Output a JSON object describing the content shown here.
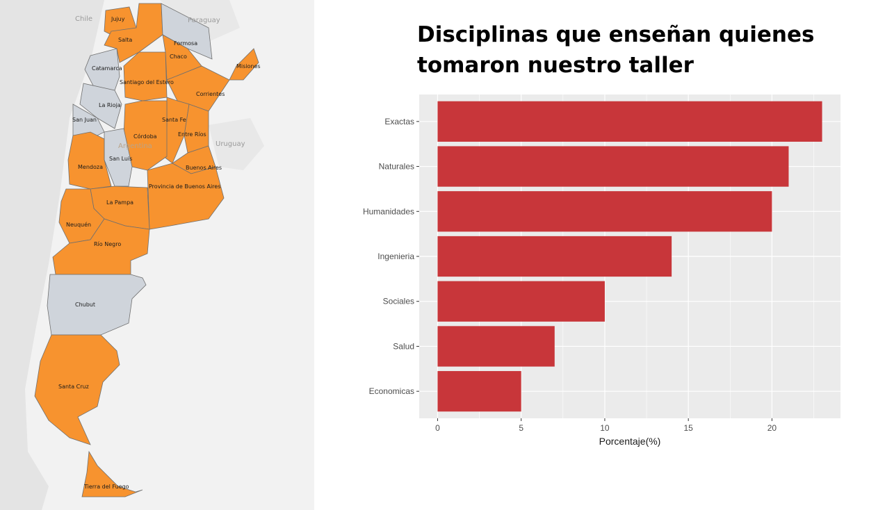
{
  "colors": {
    "highlight": "#f7932f",
    "neutral": "#cfd4db",
    "bar": "#c8363a",
    "panel_bg": "#ebebeb",
    "grid": "#ffffff",
    "map_bg": "#f2f2f2"
  },
  "map": {
    "country_labels": [
      "Chile",
      "Paraguay",
      "Uruguay"
    ],
    "country_label": "Argentina",
    "provinces": [
      {
        "name": "Jujuy",
        "highlighted": true
      },
      {
        "name": "Salta",
        "highlighted": true
      },
      {
        "name": "Formosa",
        "highlighted": false
      },
      {
        "name": "Chaco",
        "highlighted": true
      },
      {
        "name": "Misiones",
        "highlighted": true
      },
      {
        "name": "Catamarca",
        "highlighted": false
      },
      {
        "name": "Santiago del Estero",
        "highlighted": true
      },
      {
        "name": "Corrientes",
        "highlighted": true
      },
      {
        "name": "La Rioja",
        "highlighted": false
      },
      {
        "name": "San Juan",
        "highlighted": false
      },
      {
        "name": "Santa Fe",
        "highlighted": true
      },
      {
        "name": "Córdoba",
        "highlighted": true
      },
      {
        "name": "Entre Ríos",
        "highlighted": true
      },
      {
        "name": "San Luis",
        "highlighted": false
      },
      {
        "name": "Mendoza",
        "highlighted": true
      },
      {
        "name": "Buenos Aires",
        "highlighted": true
      },
      {
        "name": "Provincia de Buenos Aires",
        "highlighted": true
      },
      {
        "name": "La Pampa",
        "highlighted": true
      },
      {
        "name": "Neuquén",
        "highlighted": true
      },
      {
        "name": "Río Negro",
        "highlighted": true
      },
      {
        "name": "Chubut",
        "highlighted": false
      },
      {
        "name": "Santa Cruz",
        "highlighted": true
      },
      {
        "name": "Tierra del Fuego",
        "highlighted": true
      }
    ]
  },
  "chart_data": {
    "type": "bar",
    "orientation": "horizontal",
    "title": "Disciplinas que enseñan quienes tomaron nuestro taller",
    "xlabel": "Porcentaje(%)",
    "ylabel": "",
    "categories": [
      "Exactas",
      "Naturales",
      "Humanidades",
      "Ingenieria",
      "Sociales",
      "Salud",
      "Economicas"
    ],
    "values": [
      23,
      21,
      20,
      14,
      10,
      7,
      5
    ],
    "xlim": [
      -1.1,
      24.1
    ],
    "xticks": [
      0,
      5,
      10,
      15,
      20
    ],
    "grid": true,
    "legend": "none"
  }
}
